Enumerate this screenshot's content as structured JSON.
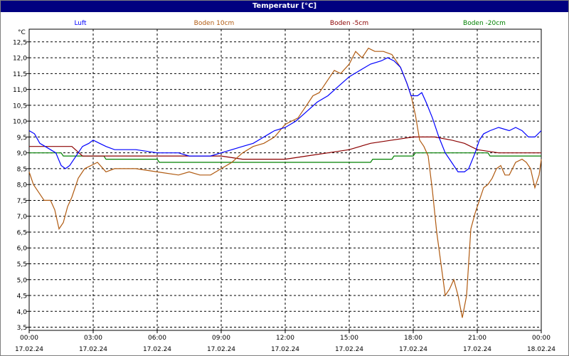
{
  "window": {
    "title": "Temperatur [°C]"
  },
  "chart_data": {
    "type": "line",
    "title": "Temperatur [°C]",
    "ylabel": "°C",
    "ylim": [
      3.4,
      12.9
    ],
    "yticks": [
      3.5,
      4.0,
      4.5,
      5.0,
      5.5,
      6.0,
      6.5,
      7.0,
      7.5,
      8.0,
      8.5,
      9.0,
      9.5,
      10.0,
      10.5,
      11.0,
      11.5,
      12.0,
      12.5
    ],
    "ytick_labels": [
      "3,5",
      "4,0",
      "4,5",
      "5,0",
      "5,5",
      "6,0",
      "6,5",
      "7,0",
      "7,5",
      "8,0",
      "8,5",
      "9,0",
      "9,5",
      "10,0",
      "10,5",
      "11,0",
      "11,5",
      "12,0",
      "12,5"
    ],
    "xlim": [
      0,
      24
    ],
    "xticks": [
      {
        "x": 0,
        "time": "00:00",
        "date": "17.02.24"
      },
      {
        "x": 3,
        "time": "03:00",
        "date": "17.02.24"
      },
      {
        "x": 6,
        "time": "06:00",
        "date": "17.02.24"
      },
      {
        "x": 9,
        "time": "09:00",
        "date": "17.02.24"
      },
      {
        "x": 12,
        "time": "12:00",
        "date": "17.02.24"
      },
      {
        "x": 15,
        "time": "15:00",
        "date": "17.02.24"
      },
      {
        "x": 18,
        "time": "18:00",
        "date": "17.02.24"
      },
      {
        "x": 21,
        "time": "21:00",
        "date": "17.02.24"
      },
      {
        "x": 24,
        "time": "00:00",
        "date": "18.02.24"
      }
    ],
    "grid": true,
    "legend_position": "top",
    "series": [
      {
        "name": "Luft",
        "color": "#0000ff",
        "points": [
          [
            0,
            9.7
          ],
          [
            0.25,
            9.6
          ],
          [
            0.5,
            9.3
          ],
          [
            0.75,
            9.2
          ],
          [
            1,
            9.1
          ],
          [
            1.25,
            9.0
          ],
          [
            1.5,
            8.6
          ],
          [
            1.7,
            8.5
          ],
          [
            1.9,
            8.6
          ],
          [
            2.2,
            8.9
          ],
          [
            2.5,
            9.2
          ],
          [
            2.8,
            9.3
          ],
          [
            3.0,
            9.4
          ],
          [
            3.3,
            9.3
          ],
          [
            3.6,
            9.2
          ],
          [
            4.0,
            9.1
          ],
          [
            5.0,
            9.1
          ],
          [
            6.0,
            9.0
          ],
          [
            7.0,
            9.0
          ],
          [
            7.5,
            8.9
          ],
          [
            8.0,
            8.9
          ],
          [
            8.5,
            8.9
          ],
          [
            9.0,
            9.0
          ],
          [
            9.5,
            9.1
          ],
          [
            10.0,
            9.2
          ],
          [
            10.5,
            9.3
          ],
          [
            11.0,
            9.5
          ],
          [
            11.5,
            9.7
          ],
          [
            12.0,
            9.8
          ],
          [
            12.5,
            10.0
          ],
          [
            13.0,
            10.3
          ],
          [
            13.5,
            10.6
          ],
          [
            14.0,
            10.8
          ],
          [
            14.5,
            11.1
          ],
          [
            15.0,
            11.4
          ],
          [
            15.5,
            11.6
          ],
          [
            16.0,
            11.8
          ],
          [
            16.5,
            11.9
          ],
          [
            16.8,
            12.0
          ],
          [
            17.1,
            11.9
          ],
          [
            17.4,
            11.7
          ],
          [
            17.7,
            11.2
          ],
          [
            17.9,
            10.8
          ],
          [
            18.2,
            10.8
          ],
          [
            18.4,
            10.9
          ],
          [
            18.6,
            10.6
          ],
          [
            18.9,
            10.1
          ],
          [
            19.2,
            9.5
          ],
          [
            19.5,
            9.0
          ],
          [
            19.8,
            8.7
          ],
          [
            20.1,
            8.4
          ],
          [
            20.4,
            8.4
          ],
          [
            20.6,
            8.5
          ],
          [
            20.9,
            9.0
          ],
          [
            21.1,
            9.4
          ],
          [
            21.3,
            9.6
          ],
          [
            21.6,
            9.7
          ],
          [
            22.0,
            9.8
          ],
          [
            22.5,
            9.7
          ],
          [
            22.8,
            9.8
          ],
          [
            23.1,
            9.7
          ],
          [
            23.4,
            9.5
          ],
          [
            23.7,
            9.5
          ],
          [
            24.0,
            9.7
          ]
        ]
      },
      {
        "name": "Boden 10cm",
        "color": "#b05a10",
        "points": [
          [
            0,
            8.4
          ],
          [
            0.2,
            8.0
          ],
          [
            0.4,
            7.8
          ],
          [
            0.7,
            7.5
          ],
          [
            1.0,
            7.5
          ],
          [
            1.2,
            7.2
          ],
          [
            1.4,
            6.6
          ],
          [
            1.6,
            6.8
          ],
          [
            1.8,
            7.3
          ],
          [
            2.0,
            7.6
          ],
          [
            2.3,
            8.2
          ],
          [
            2.6,
            8.5
          ],
          [
            2.9,
            8.6
          ],
          [
            3.2,
            8.7
          ],
          [
            3.6,
            8.4
          ],
          [
            4.0,
            8.5
          ],
          [
            5.0,
            8.5
          ],
          [
            6.0,
            8.4
          ],
          [
            7.0,
            8.3
          ],
          [
            7.5,
            8.4
          ],
          [
            8.0,
            8.3
          ],
          [
            8.5,
            8.3
          ],
          [
            9.0,
            8.5
          ],
          [
            9.5,
            8.7
          ],
          [
            10.0,
            9.0
          ],
          [
            10.5,
            9.2
          ],
          [
            11.0,
            9.3
          ],
          [
            11.5,
            9.5
          ],
          [
            12.0,
            9.9
          ],
          [
            12.3,
            10.0
          ],
          [
            12.6,
            10.1
          ],
          [
            13.0,
            10.5
          ],
          [
            13.3,
            10.8
          ],
          [
            13.6,
            10.9
          ],
          [
            14.0,
            11.3
          ],
          [
            14.3,
            11.6
          ],
          [
            14.6,
            11.5
          ],
          [
            15.0,
            11.8
          ],
          [
            15.3,
            12.2
          ],
          [
            15.6,
            12.0
          ],
          [
            15.9,
            12.3
          ],
          [
            16.2,
            12.2
          ],
          [
            16.6,
            12.2
          ],
          [
            17.0,
            12.1
          ],
          [
            17.4,
            11.7
          ],
          [
            17.7,
            11.2
          ],
          [
            17.9,
            10.8
          ],
          [
            18.1,
            10.2
          ],
          [
            18.3,
            9.4
          ],
          [
            18.5,
            9.2
          ],
          [
            18.7,
            8.9
          ],
          [
            18.9,
            7.8
          ],
          [
            19.1,
            6.5
          ],
          [
            19.3,
            5.5
          ],
          [
            19.5,
            4.5
          ],
          [
            19.7,
            4.7
          ],
          [
            19.9,
            5.0
          ],
          [
            20.1,
            4.5
          ],
          [
            20.3,
            3.8
          ],
          [
            20.5,
            4.5
          ],
          [
            20.7,
            6.6
          ],
          [
            20.9,
            7.1
          ],
          [
            21.1,
            7.5
          ],
          [
            21.3,
            7.9
          ],
          [
            21.5,
            8.0
          ],
          [
            21.7,
            8.2
          ],
          [
            21.9,
            8.5
          ],
          [
            22.1,
            8.6
          ],
          [
            22.3,
            8.3
          ],
          [
            22.5,
            8.3
          ],
          [
            22.8,
            8.7
          ],
          [
            23.1,
            8.8
          ],
          [
            23.3,
            8.7
          ],
          [
            23.5,
            8.5
          ],
          [
            23.7,
            7.9
          ],
          [
            23.9,
            8.3
          ],
          [
            24.0,
            8.8
          ]
        ]
      },
      {
        "name": "Boden -5cm",
        "color": "#8b0000",
        "points": [
          [
            0,
            9.2
          ],
          [
            2.0,
            9.2
          ],
          [
            2.5,
            8.9
          ],
          [
            4.0,
            8.9
          ],
          [
            4.5,
            8.9
          ],
          [
            8.0,
            8.9
          ],
          [
            9.0,
            8.9
          ],
          [
            10.0,
            8.8
          ],
          [
            11.0,
            8.8
          ],
          [
            12.0,
            8.8
          ],
          [
            13.0,
            8.9
          ],
          [
            14.0,
            9.0
          ],
          [
            15.0,
            9.1
          ],
          [
            16.0,
            9.3
          ],
          [
            17.0,
            9.4
          ],
          [
            18.0,
            9.5
          ],
          [
            19.0,
            9.5
          ],
          [
            19.8,
            9.4
          ],
          [
            20.4,
            9.3
          ],
          [
            21.0,
            9.1
          ],
          [
            22.0,
            9.0
          ],
          [
            24.0,
            9.0
          ]
        ]
      },
      {
        "name": "Boden -20cm",
        "color": "#008000",
        "points": [
          [
            0,
            9.0
          ],
          [
            1.5,
            9.0
          ],
          [
            1.6,
            8.9
          ],
          [
            3.5,
            8.9
          ],
          [
            3.6,
            8.8
          ],
          [
            6.0,
            8.8
          ],
          [
            6.1,
            8.7
          ],
          [
            16.0,
            8.7
          ],
          [
            16.1,
            8.8
          ],
          [
            17.0,
            8.8
          ],
          [
            17.1,
            8.9
          ],
          [
            18.0,
            8.9
          ],
          [
            18.1,
            9.0
          ],
          [
            21.5,
            9.0
          ],
          [
            21.6,
            8.9
          ],
          [
            24.0,
            8.9
          ]
        ]
      }
    ]
  }
}
